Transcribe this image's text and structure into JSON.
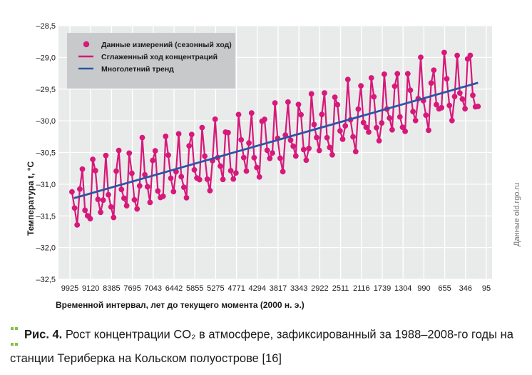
{
  "chart_data": {
    "type": "line",
    "ylabel": "Температура t, °С",
    "xlabel": "Временной интервал, лет до текущего момента (2000 н. э.)",
    "ylim": [
      -32.5,
      -28.5
    ],
    "yticks": [
      -32.5,
      -32.0,
      -31.5,
      -31.0,
      -30.5,
      -30.0,
      -29.5,
      -29.0,
      -28.5
    ],
    "ytick_labels": [
      "–32,5",
      "–32,0",
      "–31,5",
      "–31,0",
      "–30,5",
      "–30,0",
      "–29,5",
      "–29,0",
      "–28,5"
    ],
    "xtick_labels": [
      "9925",
      "9120",
      "8385",
      "7695",
      "7043",
      "6442",
      "5855",
      "5275",
      "4771",
      "4294",
      "3817",
      "3343",
      "2922",
      "2511",
      "2116",
      "1739",
      "1304",
      "990",
      "655",
      "346",
      "95"
    ],
    "grid": true,
    "legend_position": "top-left",
    "series": [
      {
        "name": "Данные измерений (сезонный ход)",
        "kind": "scatter",
        "color": "#d6197a"
      },
      {
        "name": "Сглаженный ход концентраций",
        "kind": "line",
        "color": "#d6197a"
      },
      {
        "name": "Многолетний тренд",
        "kind": "line",
        "color": "#2b55a6",
        "x_start": 0.2,
        "x_end": 19.6,
        "y_start": -31.22,
        "y_end": -29.4
      }
    ],
    "seasonal": {
      "x_start": 0.1,
      "x_end": 19.65,
      "points_per_unit": 8,
      "trend_start": -31.25,
      "trend_end": -29.4,
      "amplitude": 0.45,
      "cycles_per_unit": 1.72
    }
  },
  "caption": {
    "label": "Рис. 4.",
    "text": " Рост концентрации CO₂ в атмосфере, зафиксированный за 1988–2008-го годы на станции Териберка на Кольском полуострове [16]"
  },
  "source_note": "Данные old.rgo.ru",
  "colors": {
    "plot_bg": "#e9eaea",
    "grid": "#ffffff",
    "accent": "#d6197a",
    "trend": "#2b55a6",
    "caption_dots": "#7fc241"
  }
}
